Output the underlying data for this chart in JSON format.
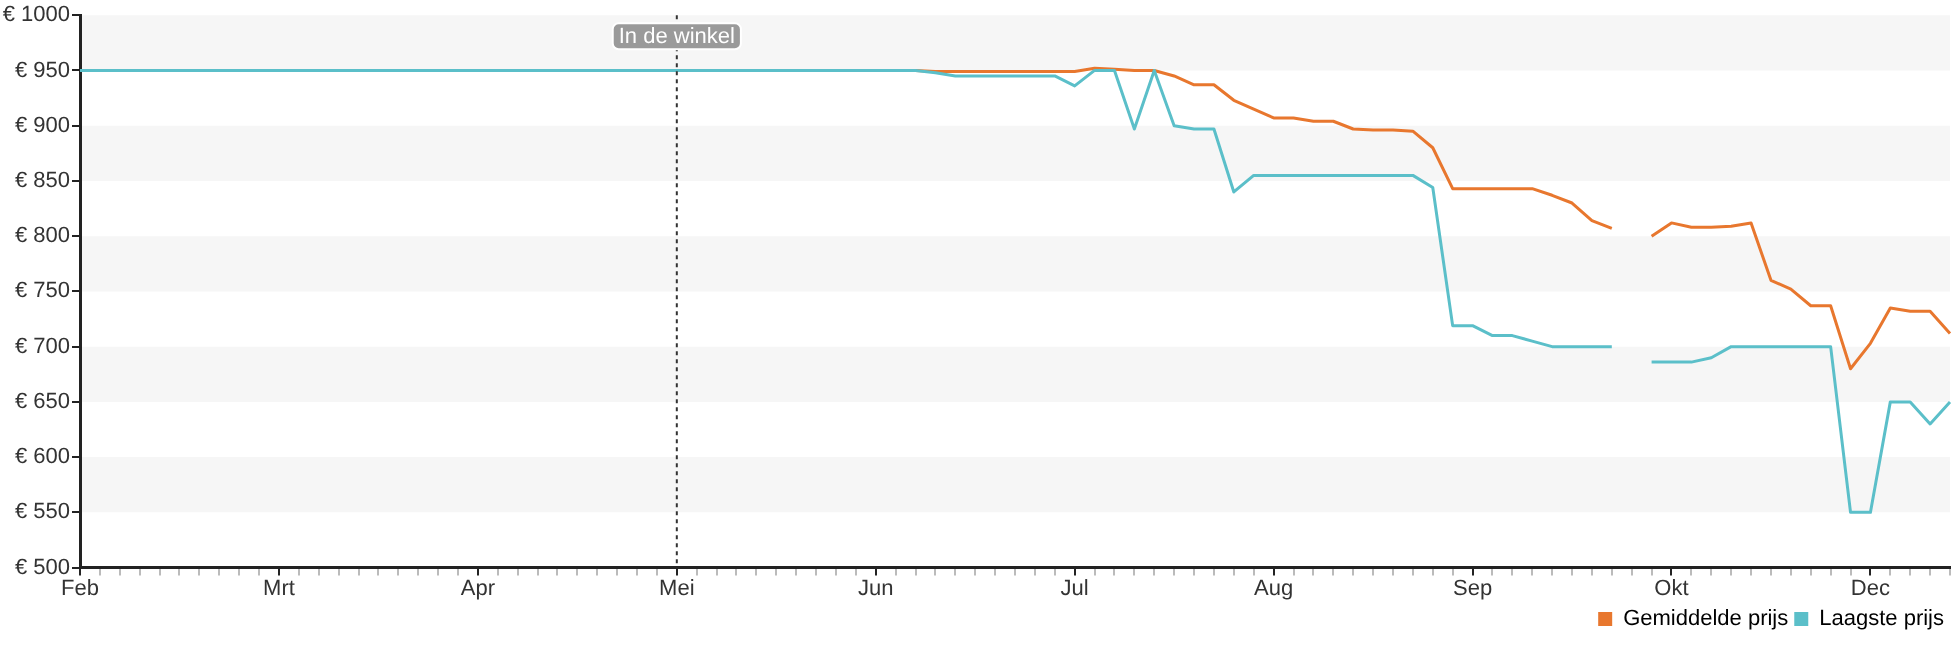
{
  "chart_data": {
    "type": "line",
    "categories": [
      "Feb",
      null,
      null,
      null,
      null,
      null,
      null,
      null,
      null,
      null,
      "Mrt",
      null,
      null,
      null,
      null,
      null,
      null,
      null,
      null,
      null,
      "Apr",
      null,
      null,
      null,
      null,
      null,
      null,
      null,
      null,
      null,
      "Mei",
      null,
      null,
      null,
      null,
      null,
      null,
      null,
      null,
      null,
      "Jun",
      null,
      null,
      null,
      null,
      null,
      null,
      null,
      null,
      null,
      "Jul",
      null,
      null,
      null,
      null,
      null,
      null,
      null,
      null,
      null,
      "Aug",
      null,
      null,
      null,
      null,
      null,
      null,
      null,
      null,
      null,
      "Sep",
      null,
      null,
      null,
      null,
      null,
      null,
      null,
      null,
      null,
      "Okt",
      null,
      null,
      null,
      null,
      null,
      null,
      null,
      null,
      null,
      "Dec",
      null,
      null,
      null,
      null
    ],
    "ylim": [
      500,
      1000
    ],
    "yticks": [
      {
        "value": 500,
        "label": "€ 500"
      },
      {
        "value": 550,
        "label": "€ 550"
      },
      {
        "value": 600,
        "label": "€ 600"
      },
      {
        "value": 650,
        "label": "€ 650"
      },
      {
        "value": 700,
        "label": "€ 700"
      },
      {
        "value": 750,
        "label": "€ 750"
      },
      {
        "value": 800,
        "label": "€ 800"
      },
      {
        "value": 850,
        "label": "€ 850"
      },
      {
        "value": 900,
        "label": "€ 900"
      },
      {
        "value": 950,
        "label": "€ 950"
      },
      {
        "value": 1000,
        "label": "€ 1000"
      }
    ],
    "legend": "bottom right",
    "marker": "none",
    "ref_lines": [
      {
        "axis": "x",
        "value": "Mei",
        "label": "In de winkel",
        "line_style": "dotted"
      }
    ],
    "series": [
      {
        "name": "Gemiddelde prijs",
        "color": "#e8772e",
        "values": [
          null,
          null,
          null,
          null,
          null,
          null,
          null,
          null,
          null,
          null,
          null,
          null,
          null,
          null,
          null,
          null,
          null,
          null,
          null,
          null,
          null,
          null,
          null,
          null,
          null,
          null,
          null,
          null,
          null,
          null,
          null,
          null,
          null,
          null,
          null,
          null,
          null,
          null,
          null,
          null,
          null,
          null,
          950,
          949,
          949,
          949,
          949,
          949,
          949,
          949,
          949,
          952,
          951,
          950,
          950,
          945,
          937,
          937,
          923,
          915,
          907,
          907,
          904,
          904,
          897,
          896,
          896,
          895,
          880,
          843,
          843,
          843,
          843,
          843,
          837,
          830,
          814,
          807,
          null,
          800,
          812,
          808,
          808,
          809,
          812,
          760,
          752,
          737,
          737,
          680,
          703,
          735,
          732,
          732,
          712
        ]
      },
      {
        "name": "Laagste prijs",
        "color": "#5bbfc9",
        "values": [
          950,
          950,
          950,
          950,
          950,
          950,
          950,
          950,
          950,
          950,
          950,
          950,
          950,
          950,
          950,
          950,
          950,
          950,
          950,
          950,
          950,
          950,
          950,
          950,
          950,
          950,
          950,
          950,
          950,
          950,
          950,
          950,
          950,
          950,
          950,
          950,
          950,
          950,
          950,
          950,
          950,
          950,
          950,
          948,
          945,
          945,
          945,
          945,
          945,
          945,
          936,
          950,
          950,
          897,
          950,
          900,
          897,
          897,
          840,
          855,
          855,
          855,
          855,
          855,
          855,
          855,
          855,
          855,
          844,
          719,
          719,
          710,
          710,
          705,
          700,
          700,
          700,
          700,
          null,
          686,
          686,
          686,
          690,
          700,
          700,
          700,
          700,
          700,
          700,
          550,
          550,
          650,
          650,
          630,
          650
        ]
      }
    ]
  }
}
